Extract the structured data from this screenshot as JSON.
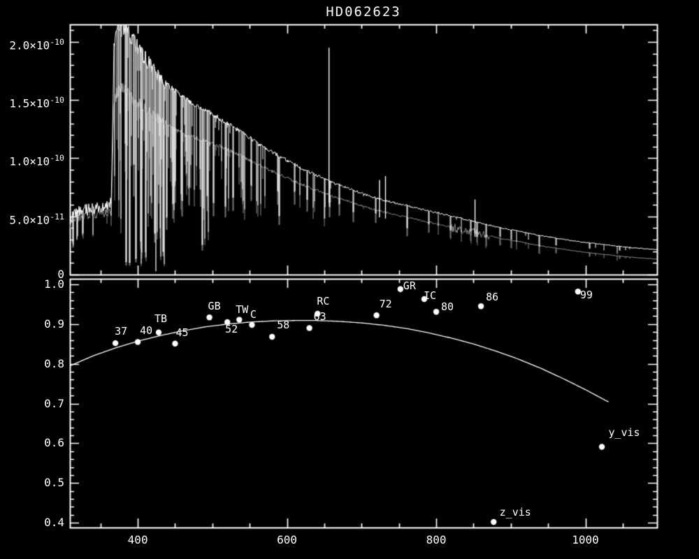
{
  "title": "HD062623",
  "colors": {
    "background": "#000000",
    "foreground": "#ffffff",
    "secondary_trace": "#8c8c8c"
  },
  "chart_data": [
    {
      "type": "line",
      "panel": "flux-spectrum",
      "title": "HD062623",
      "xlabel": "",
      "ylabel": "",
      "grid": false,
      "xlim": [
        309,
        1096
      ],
      "ylim": [
        0,
        2.15e-10
      ],
      "x_major_ticks": [
        400,
        600,
        800,
        1000
      ],
      "x_minor_step": 50,
      "x_tick_labels": [],
      "y_major_ticks": [
        0,
        5e-11,
        1e-10,
        1.5e-10,
        2e-10
      ],
      "y_tick_labels": [
        "0",
        "5.0×10⁻¹¹",
        "1.0×10⁻¹⁰",
        "1.5×10⁻¹⁰",
        "2.0×10⁻¹⁰"
      ],
      "y_minor_step": 1e-11,
      "flux_unit": 1e-11,
      "noise_seed": 1234,
      "series": [
        {
          "name": "observed-spectrum",
          "color": "#ffffff",
          "continuum": [
            [
              309,
              4.6
            ],
            [
              315,
              5.2
            ],
            [
              322,
              5.5
            ],
            [
              336,
              5.6
            ],
            [
              350,
              5.8
            ],
            [
              360,
              6.0
            ],
            [
              364.5,
              6.2
            ],
            [
              366,
              12.0
            ],
            [
              368,
              19.5
            ],
            [
              372,
              21.2
            ],
            [
              377,
              21.4
            ],
            [
              384,
              21.0
            ],
            [
              392,
              20.3
            ],
            [
              400,
              19.5
            ],
            [
              410,
              18.6
            ],
            [
              422,
              17.6
            ],
            [
              435,
              16.6
            ],
            [
              448,
              15.9
            ],
            [
              460,
              15.3
            ],
            [
              472,
              14.8
            ],
            [
              486,
              14.3
            ],
            [
              500,
              13.8
            ],
            [
              515,
              13.2
            ],
            [
              530,
              12.6
            ],
            [
              545,
              12.0
            ],
            [
              560,
              11.3
            ],
            [
              578,
              10.6
            ],
            [
              595,
              10.0
            ],
            [
              612,
              9.4
            ],
            [
              630,
              8.8
            ],
            [
              648,
              8.3
            ],
            [
              665,
              7.8
            ],
            [
              682,
              7.4
            ],
            [
              700,
              7.0
            ],
            [
              718,
              6.6
            ],
            [
              736,
              6.3
            ],
            [
              755,
              6.0
            ],
            [
              775,
              5.7
            ],
            [
              795,
              5.4
            ],
            [
              815,
              5.1
            ],
            [
              835,
              4.8
            ],
            [
              855,
              4.5
            ],
            [
              875,
              4.2
            ],
            [
              895,
              3.9
            ],
            [
              915,
              3.7
            ],
            [
              935,
              3.4
            ],
            [
              955,
              3.2
            ],
            [
              975,
              3.0
            ],
            [
              995,
              2.8
            ],
            [
              1015,
              2.65
            ],
            [
              1035,
              2.5
            ],
            [
              1055,
              2.35
            ],
            [
              1075,
              2.25
            ],
            [
              1096,
              2.15
            ]
          ]
        },
        {
          "name": "comparison-spectrum",
          "color": "#8c8c8c",
          "ratio_to_primary": [
            [
              309,
              0.92
            ],
            [
              360,
              0.92
            ],
            [
              368,
              0.74
            ],
            [
              400,
              0.76
            ],
            [
              450,
              0.79
            ],
            [
              500,
              0.82
            ],
            [
              560,
              0.84
            ],
            [
              620,
              0.85
            ],
            [
              680,
              0.85
            ],
            [
              740,
              0.84
            ],
            [
              800,
              0.82
            ],
            [
              860,
              0.79
            ],
            [
              920,
              0.75
            ],
            [
              980,
              0.71
            ],
            [
              1040,
              0.66
            ],
            [
              1096,
              0.62
            ]
          ]
        }
      ],
      "absorption_lines": [
        [
          313,
          0.5
        ],
        [
          318,
          0.4
        ],
        [
          326,
          0.35
        ],
        [
          383.5,
          0.95
        ],
        [
          388.9,
          0.95
        ],
        [
          397.0,
          0.93
        ],
        [
          404,
          0.85
        ],
        [
          410.2,
          0.9
        ],
        [
          422,
          0.8
        ],
        [
          434.0,
          0.88
        ],
        [
          438.5,
          0.7
        ],
        [
          447.1,
          0.62
        ],
        [
          458,
          0.55
        ],
        [
          468,
          0.5
        ],
        [
          486.1,
          0.82
        ],
        [
          492.5,
          0.52
        ],
        [
          501.5,
          0.55
        ],
        [
          517.3,
          0.55
        ],
        [
          527.0,
          0.48
        ],
        [
          540,
          0.4
        ],
        [
          552,
          0.35
        ],
        [
          587.6,
          0.3
        ],
        [
          589.0,
          0.5
        ],
        [
          610,
          0.25
        ],
        [
          627,
          0.28
        ],
        [
          650,
          0.3
        ],
        [
          670,
          0.22
        ],
        [
          688,
          0.26
        ],
        [
          718,
          0.2
        ],
        [
          761,
          0.33
        ],
        [
          790,
          0.2
        ],
        [
          819,
          0.24
        ],
        [
          846,
          0.2
        ],
        [
          854,
          0.28
        ],
        [
          866,
          0.26
        ],
        [
          885,
          0.2
        ],
        [
          900,
          0.22
        ],
        [
          938,
          0.28
        ],
        [
          960,
          0.2
        ],
        [
          1005,
          0.18
        ],
        [
          1045,
          0.15
        ]
      ],
      "emission_lines": [
        {
          "x": 656.3,
          "peak": 1.95e-10
        },
        {
          "x": 724,
          "factor": 1.25
        },
        {
          "x": 732,
          "factor": 1.33
        },
        {
          "x": 852,
          "factor": 1.42
        }
      ],
      "gray_fuzz_region": [
        820,
        872
      ]
    },
    {
      "type": "scatter",
      "panel": "response-ratio",
      "xlabel": "",
      "ylabel": "",
      "grid": false,
      "xlim": [
        309,
        1096
      ],
      "ylim": [
        0.388,
        1.014
      ],
      "x_major_ticks": [
        400,
        600,
        800,
        1000
      ],
      "x_tick_labels": [
        "400",
        "600",
        "800",
        "1000"
      ],
      "x_minor_step": 50,
      "y_major_ticks": [
        0.4,
        0.5,
        0.6,
        0.7,
        0.8,
        0.9,
        1.0
      ],
      "y_tick_labels": [
        "0.4",
        "0.5",
        "0.6",
        "0.7",
        "0.8",
        "0.9",
        "1.0"
      ],
      "y_minor_step": 0.02,
      "points": [
        {
          "label": "37",
          "x": 370,
          "y": 0.852,
          "label_offset": [
            8,
            -17
          ]
        },
        {
          "label": "40",
          "x": 400,
          "y": 0.855,
          "label_offset": [
            12,
            -16
          ]
        },
        {
          "label": "TB",
          "x": 428,
          "y": 0.879,
          "label_offset": [
            3,
            -20
          ]
        },
        {
          "label": "45",
          "x": 450,
          "y": 0.851,
          "label_offset": [
            10,
            -16
          ]
        },
        {
          "label": "GB",
          "x": 496,
          "y": 0.917,
          "label_offset": [
            7,
            -16
          ]
        },
        {
          "label": "52",
          "x": 520,
          "y": 0.905,
          "label_offset": [
            6,
            10
          ]
        },
        {
          "label": "TW",
          "x": 536,
          "y": 0.911,
          "label_offset": [
            4,
            -15
          ]
        },
        {
          "label": "C",
          "x": 553,
          "y": 0.898,
          "label_offset": [
            2,
            -15
          ]
        },
        {
          "label": "58",
          "x": 580,
          "y": 0.868,
          "label_offset": [
            16,
            -17
          ]
        },
        {
          "label": "63",
          "x": 630,
          "y": 0.89,
          "label_offset": [
            15,
            -17
          ]
        },
        {
          "label": "RC",
          "x": 641,
          "y": 0.926,
          "label_offset": [
            8,
            -18
          ]
        },
        {
          "label": "72",
          "x": 720,
          "y": 0.922,
          "label_offset": [
            13,
            -16
          ]
        },
        {
          "label": "GR",
          "x": 752,
          "y": 0.988,
          "label_offset": [
            13,
            -5
          ]
        },
        {
          "label": "IC",
          "x": 784,
          "y": 0.963,
          "label_offset": [
            8,
            -5
          ]
        },
        {
          "label": "80",
          "x": 800,
          "y": 0.931,
          "label_offset": [
            16,
            -7
          ]
        },
        {
          "label": "86",
          "x": 860,
          "y": 0.945,
          "label_offset": [
            16,
            -13
          ]
        },
        {
          "label": "99",
          "x": 990,
          "y": 0.982,
          "label_offset": [
            12,
            5
          ]
        },
        {
          "label": "y_vis",
          "x": 1022,
          "y": 0.591,
          "label_offset": [
            32,
            -21
          ]
        },
        {
          "label": "z_vis",
          "x": 877,
          "y": 0.402,
          "label_offset": [
            31,
            -14
          ]
        }
      ],
      "fit_curve": [
        [
          309,
          0.795
        ],
        [
          340,
          0.82
        ],
        [
          370,
          0.84
        ],
        [
          400,
          0.857
        ],
        [
          430,
          0.871
        ],
        [
          460,
          0.883
        ],
        [
          490,
          0.893
        ],
        [
          520,
          0.9
        ],
        [
          550,
          0.905
        ],
        [
          580,
          0.908
        ],
        [
          610,
          0.909
        ],
        [
          640,
          0.909
        ],
        [
          670,
          0.907
        ],
        [
          700,
          0.903
        ],
        [
          730,
          0.897
        ],
        [
          760,
          0.889
        ],
        [
          790,
          0.878
        ],
        [
          820,
          0.865
        ],
        [
          850,
          0.85
        ],
        [
          880,
          0.832
        ],
        [
          910,
          0.812
        ],
        [
          940,
          0.789
        ],
        [
          970,
          0.763
        ],
        [
          1000,
          0.735
        ],
        [
          1032,
          0.703
        ]
      ]
    }
  ]
}
